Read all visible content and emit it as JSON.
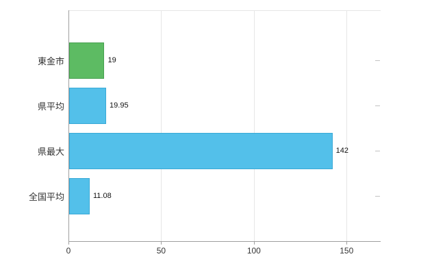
{
  "chart_data": {
    "type": "bar",
    "orientation": "horizontal",
    "title": "",
    "xlabel": "",
    "ylabel": "",
    "legend": "none",
    "grid": "vertical-light",
    "categories": [
      "東金市",
      "県平均",
      "県最大",
      "全国平均"
    ],
    "values": [
      19,
      19.95,
      142,
      11.08
    ],
    "value_labels": [
      "19",
      "19.95",
      "142",
      "11.08"
    ],
    "bar_colors": [
      "#5dbb63",
      "#53c0ea",
      "#53c0ea",
      "#53c0ea"
    ],
    "bar_border_colors": [
      "#47a050",
      "#39a9d6",
      "#39a9d6",
      "#39a9d6"
    ],
    "xticks": [
      0,
      50,
      100,
      150
    ],
    "xtick_labels": [
      "0",
      "50",
      "100",
      "150"
    ],
    "xlim": [
      0,
      168
    ],
    "colors": {
      "axis": "#9e9e9e",
      "grid": "#e6e6e6",
      "text": "#333333",
      "background": "#ffffff"
    }
  }
}
